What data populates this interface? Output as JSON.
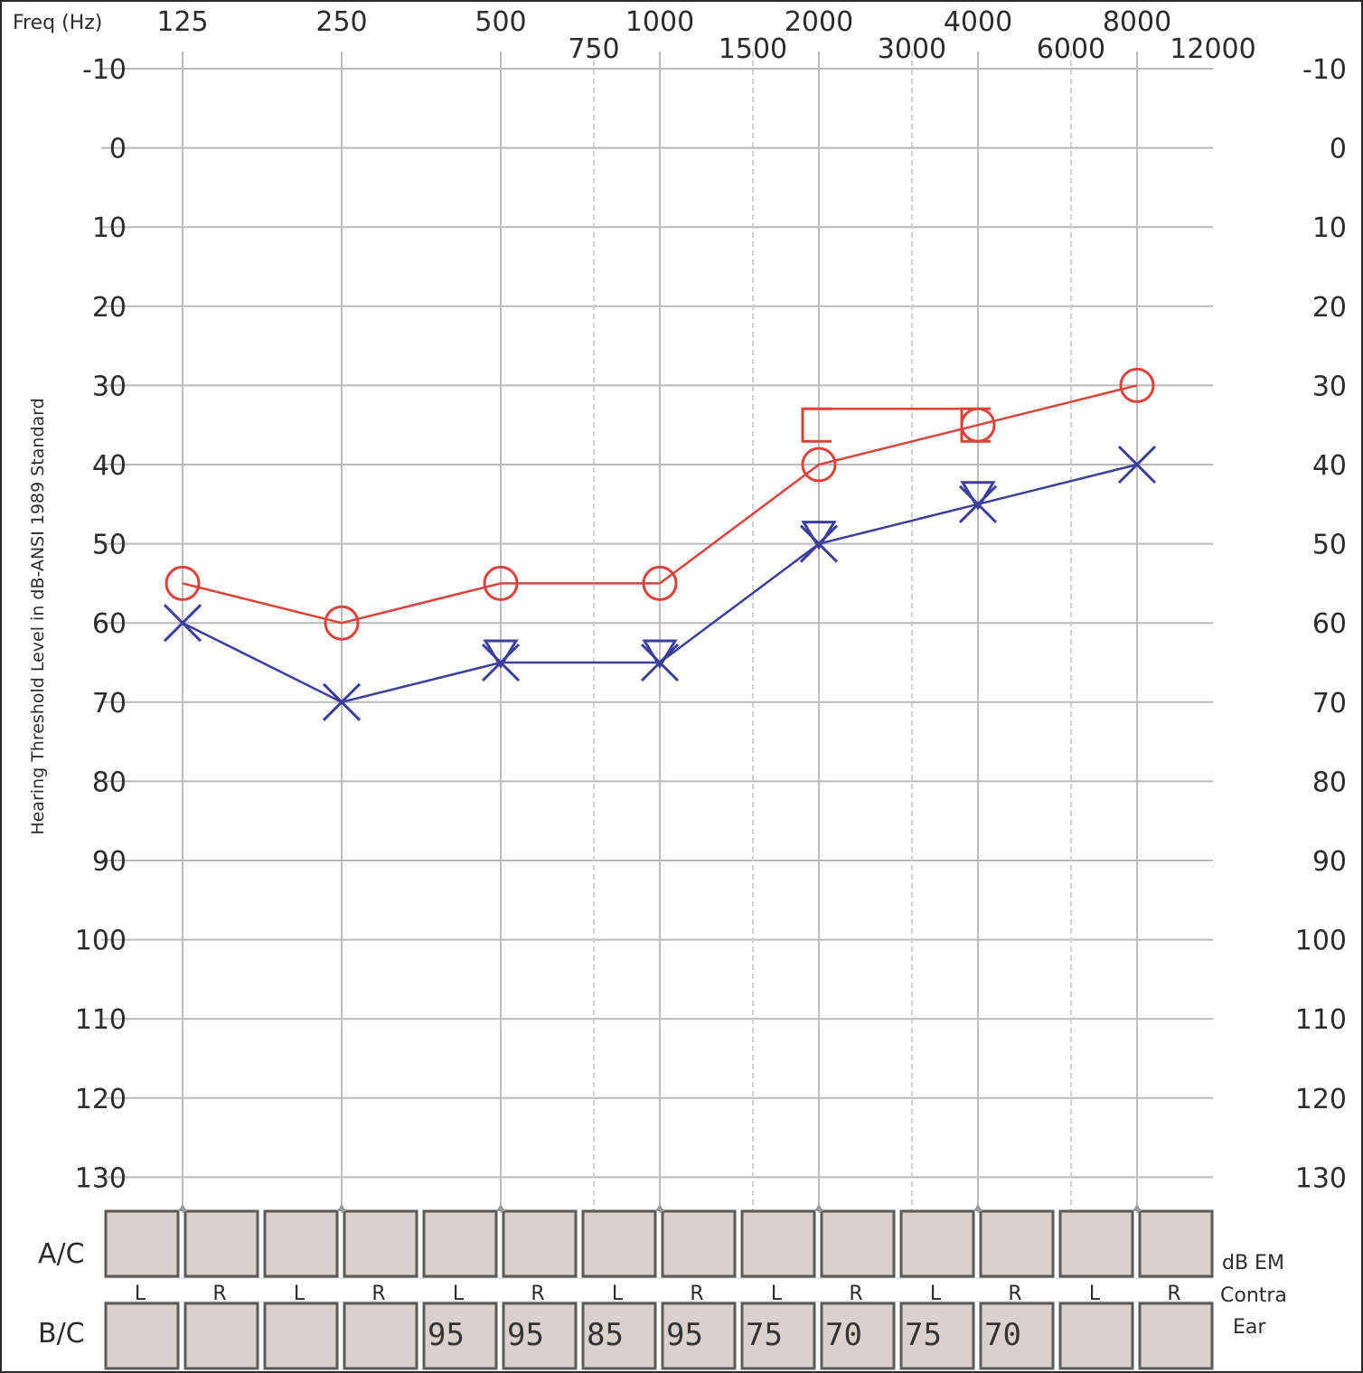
{
  "chart_data": {
    "type": "line",
    "freq_label": "Freq (Hz)",
    "ylabel": "Hearing Threshold Level in dB-ANSI 1989 Standard",
    "x_octaves": [
      125,
      250,
      500,
      1000,
      2000,
      4000,
      8000
    ],
    "x_interoctaves": [
      750,
      1500,
      3000,
      6000,
      12000
    ],
    "ylim": [
      -10,
      130
    ],
    "y_ticks": [
      -10,
      0,
      10,
      20,
      30,
      40,
      50,
      60,
      70,
      80,
      90,
      100,
      110,
      120,
      130
    ],
    "y_inverted": true,
    "x_scale": "log2",
    "grid": true,
    "series": [
      {
        "symbol": "circle",
        "color": "#d9433b",
        "x": [
          125,
          250,
          500,
          1000,
          2000,
          4000,
          8000
        ],
        "y": [
          55,
          60,
          55,
          55,
          40,
          35,
          30
        ]
      },
      {
        "symbol": "bracket-left",
        "color": "#d9433b",
        "x": [
          2000,
          4000
        ],
        "y": [
          35,
          35
        ]
      },
      {
        "symbol": "x",
        "color": "#3b3f9a",
        "x": [
          125,
          250,
          500,
          1000,
          2000,
          4000,
          8000
        ],
        "y": [
          60,
          70,
          65,
          65,
          50,
          45,
          40
        ]
      },
      {
        "symbol": "triangle-down",
        "color": "#3b3f9a",
        "x": [
          500,
          1000,
          2000,
          4000
        ],
        "y": [
          65,
          65,
          50,
          45
        ]
      }
    ],
    "masking_table": {
      "ac_label": "A/C",
      "bc_label": "B/C",
      "right_labels": [
        "dB EM",
        "Contra",
        "Ear"
      ],
      "ear_labels": [
        "L",
        "R",
        "L",
        "R",
        "L",
        "R",
        "L",
        "R",
        "L",
        "R",
        "L",
        "R",
        "L",
        "R"
      ],
      "ac_values": [
        "",
        "",
        "",
        "",
        "",
        "",
        "",
        "",
        "",
        "",
        "",
        "",
        "",
        ""
      ],
      "bc_values": [
        "",
        "",
        "",
        "",
        "95",
        "95",
        "85",
        "95",
        "75",
        "70",
        "75",
        "70",
        "",
        ""
      ]
    }
  }
}
